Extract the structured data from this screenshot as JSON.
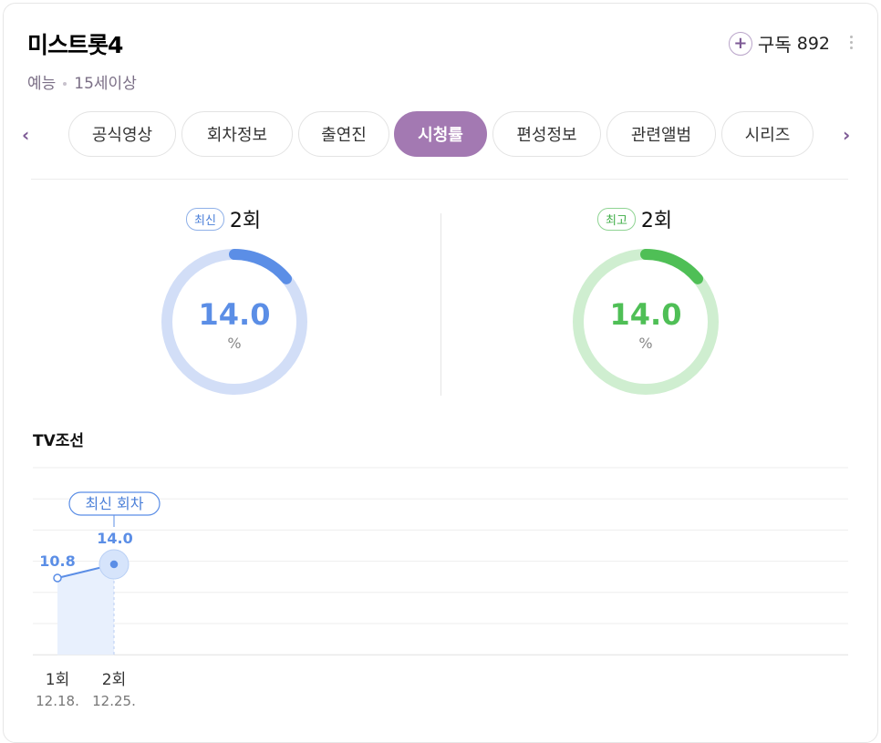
{
  "header": {
    "title": "미스트롯4",
    "genre": "예능",
    "rating": "15세이상",
    "subscribe_label": "구독",
    "subscribe_count": "892"
  },
  "tabs": [
    {
      "label": "공식영상",
      "active": false
    },
    {
      "label": "회차정보",
      "active": false
    },
    {
      "label": "출연진",
      "active": false
    },
    {
      "label": "시청률",
      "active": true
    },
    {
      "label": "편성정보",
      "active": false
    },
    {
      "label": "관련앨범",
      "active": false
    },
    {
      "label": "시리즈",
      "active": false
    }
  ],
  "ratings": {
    "latest": {
      "badge": "최신",
      "episode": "2회",
      "value": "14.0",
      "unit": "%",
      "color": "#5b8ee6",
      "track": "#d2def7"
    },
    "highest": {
      "badge": "최고",
      "episode": "2회",
      "value": "14.0",
      "unit": "%",
      "color": "#4fbf56",
      "track": "#cfeed0"
    }
  },
  "station": "TV조선",
  "chart_data": {
    "type": "line",
    "categories": [
      "1회",
      "2회"
    ],
    "dates": [
      "12.18.",
      "12.25."
    ],
    "values": [
      10.8,
      14.0
    ],
    "value_labels": [
      "10.8",
      "14.0"
    ],
    "callout": "최신 회차",
    "grid": true,
    "color": "#5b8ee6"
  }
}
